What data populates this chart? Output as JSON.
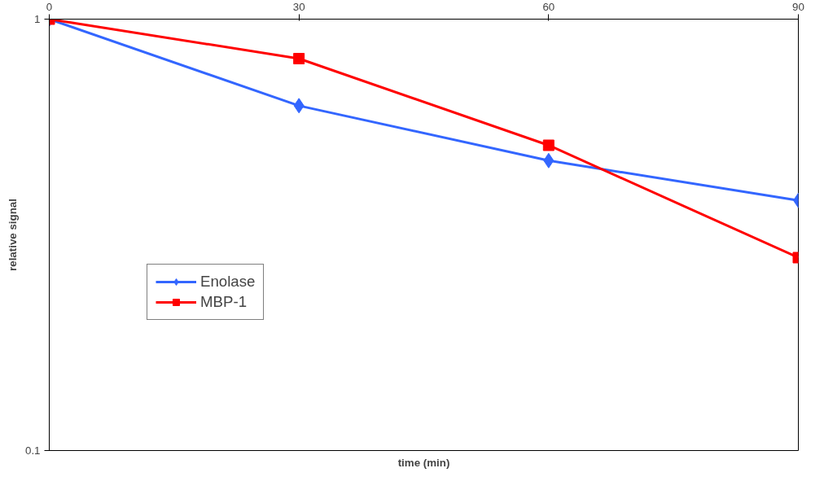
{
  "chart_data": {
    "type": "line",
    "xlabel": "time (min)",
    "ylabel": "relative signal",
    "x": [
      0,
      30,
      60,
      90
    ],
    "series": [
      {
        "name": "Enolase",
        "color": "#3366ff",
        "marker": "diamond",
        "values": [
          1,
          0.63,
          0.47,
          0.38
        ]
      },
      {
        "name": "MBP-1",
        "color": "#ff0000",
        "marker": "square",
        "values": [
          1,
          0.81,
          0.51,
          0.28
        ]
      }
    ],
    "xlim": [
      0,
      90
    ],
    "xticks": [
      0,
      30,
      60,
      90
    ],
    "ylim": [
      0.1,
      1
    ],
    "yticks": [
      0.1,
      1
    ],
    "log": "y",
    "grid": false,
    "legend": "left"
  }
}
